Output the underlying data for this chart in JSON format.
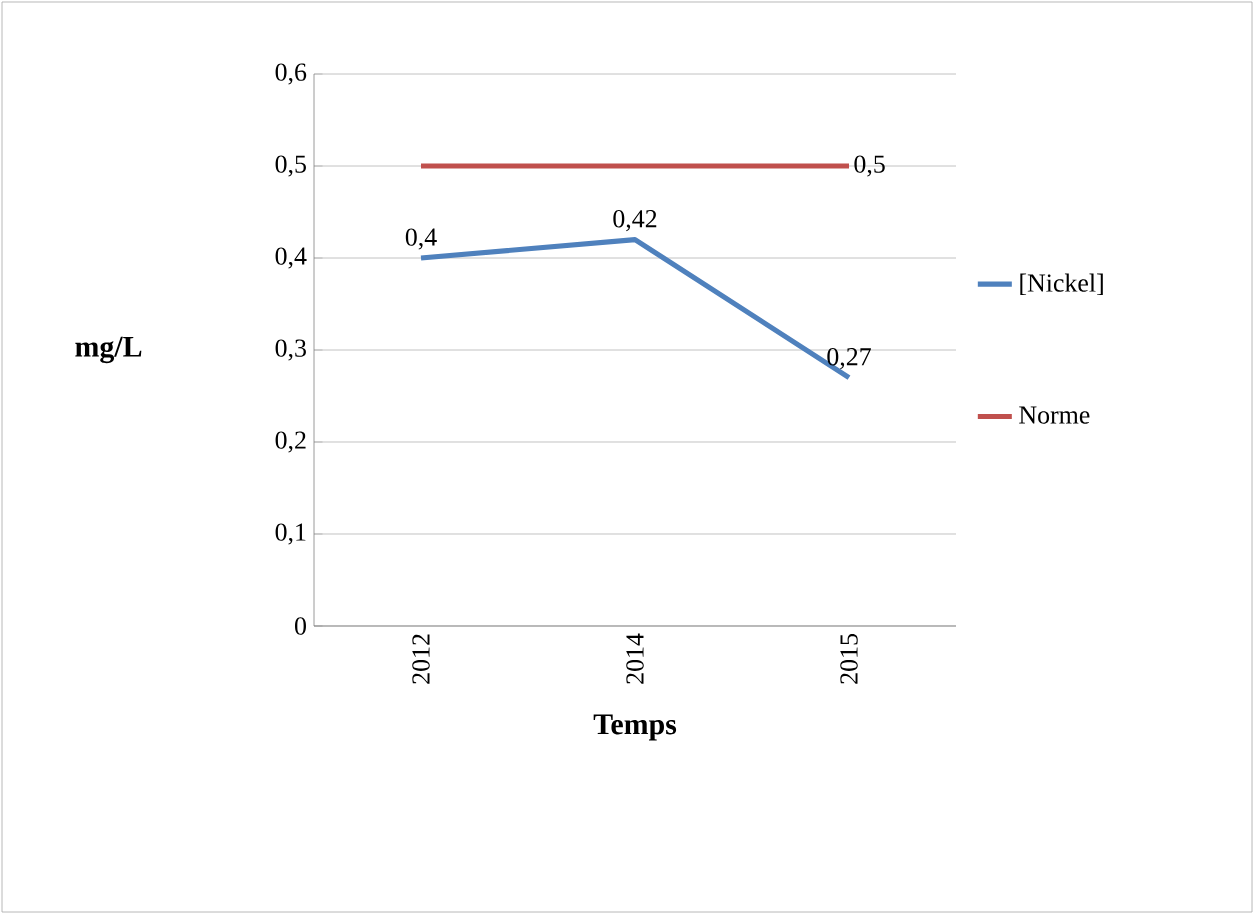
{
  "chart_data": {
    "type": "line",
    "categories": [
      "2012",
      "2014",
      "2015"
    ],
    "xlabel": "Temps",
    "ylabel": "mg/L",
    "ylim": [
      0,
      0.6
    ],
    "yticks": [
      {
        "value": 0,
        "label": "0"
      },
      {
        "value": 0.1,
        "label": "0,1"
      },
      {
        "value": 0.2,
        "label": "0,2"
      },
      {
        "value": 0.3,
        "label": "0,3"
      },
      {
        "value": 0.4,
        "label": "0,4"
      },
      {
        "value": 0.5,
        "label": "0,5"
      },
      {
        "value": 0.6,
        "label": "0,6"
      }
    ],
    "grid": "y",
    "legend": "right",
    "marker": "none",
    "series": [
      {
        "name": "[Nickel]",
        "color": "#4f81bd",
        "values": [
          0.4,
          0.42,
          0.27
        ],
        "value_labels": [
          "0,4",
          "0,42",
          "0,27"
        ]
      },
      {
        "name": "Norme",
        "color": "#c0504d",
        "values": [
          0.5,
          0.5,
          0.5
        ],
        "value_labels": [
          null,
          null,
          "0,5"
        ]
      }
    ]
  }
}
